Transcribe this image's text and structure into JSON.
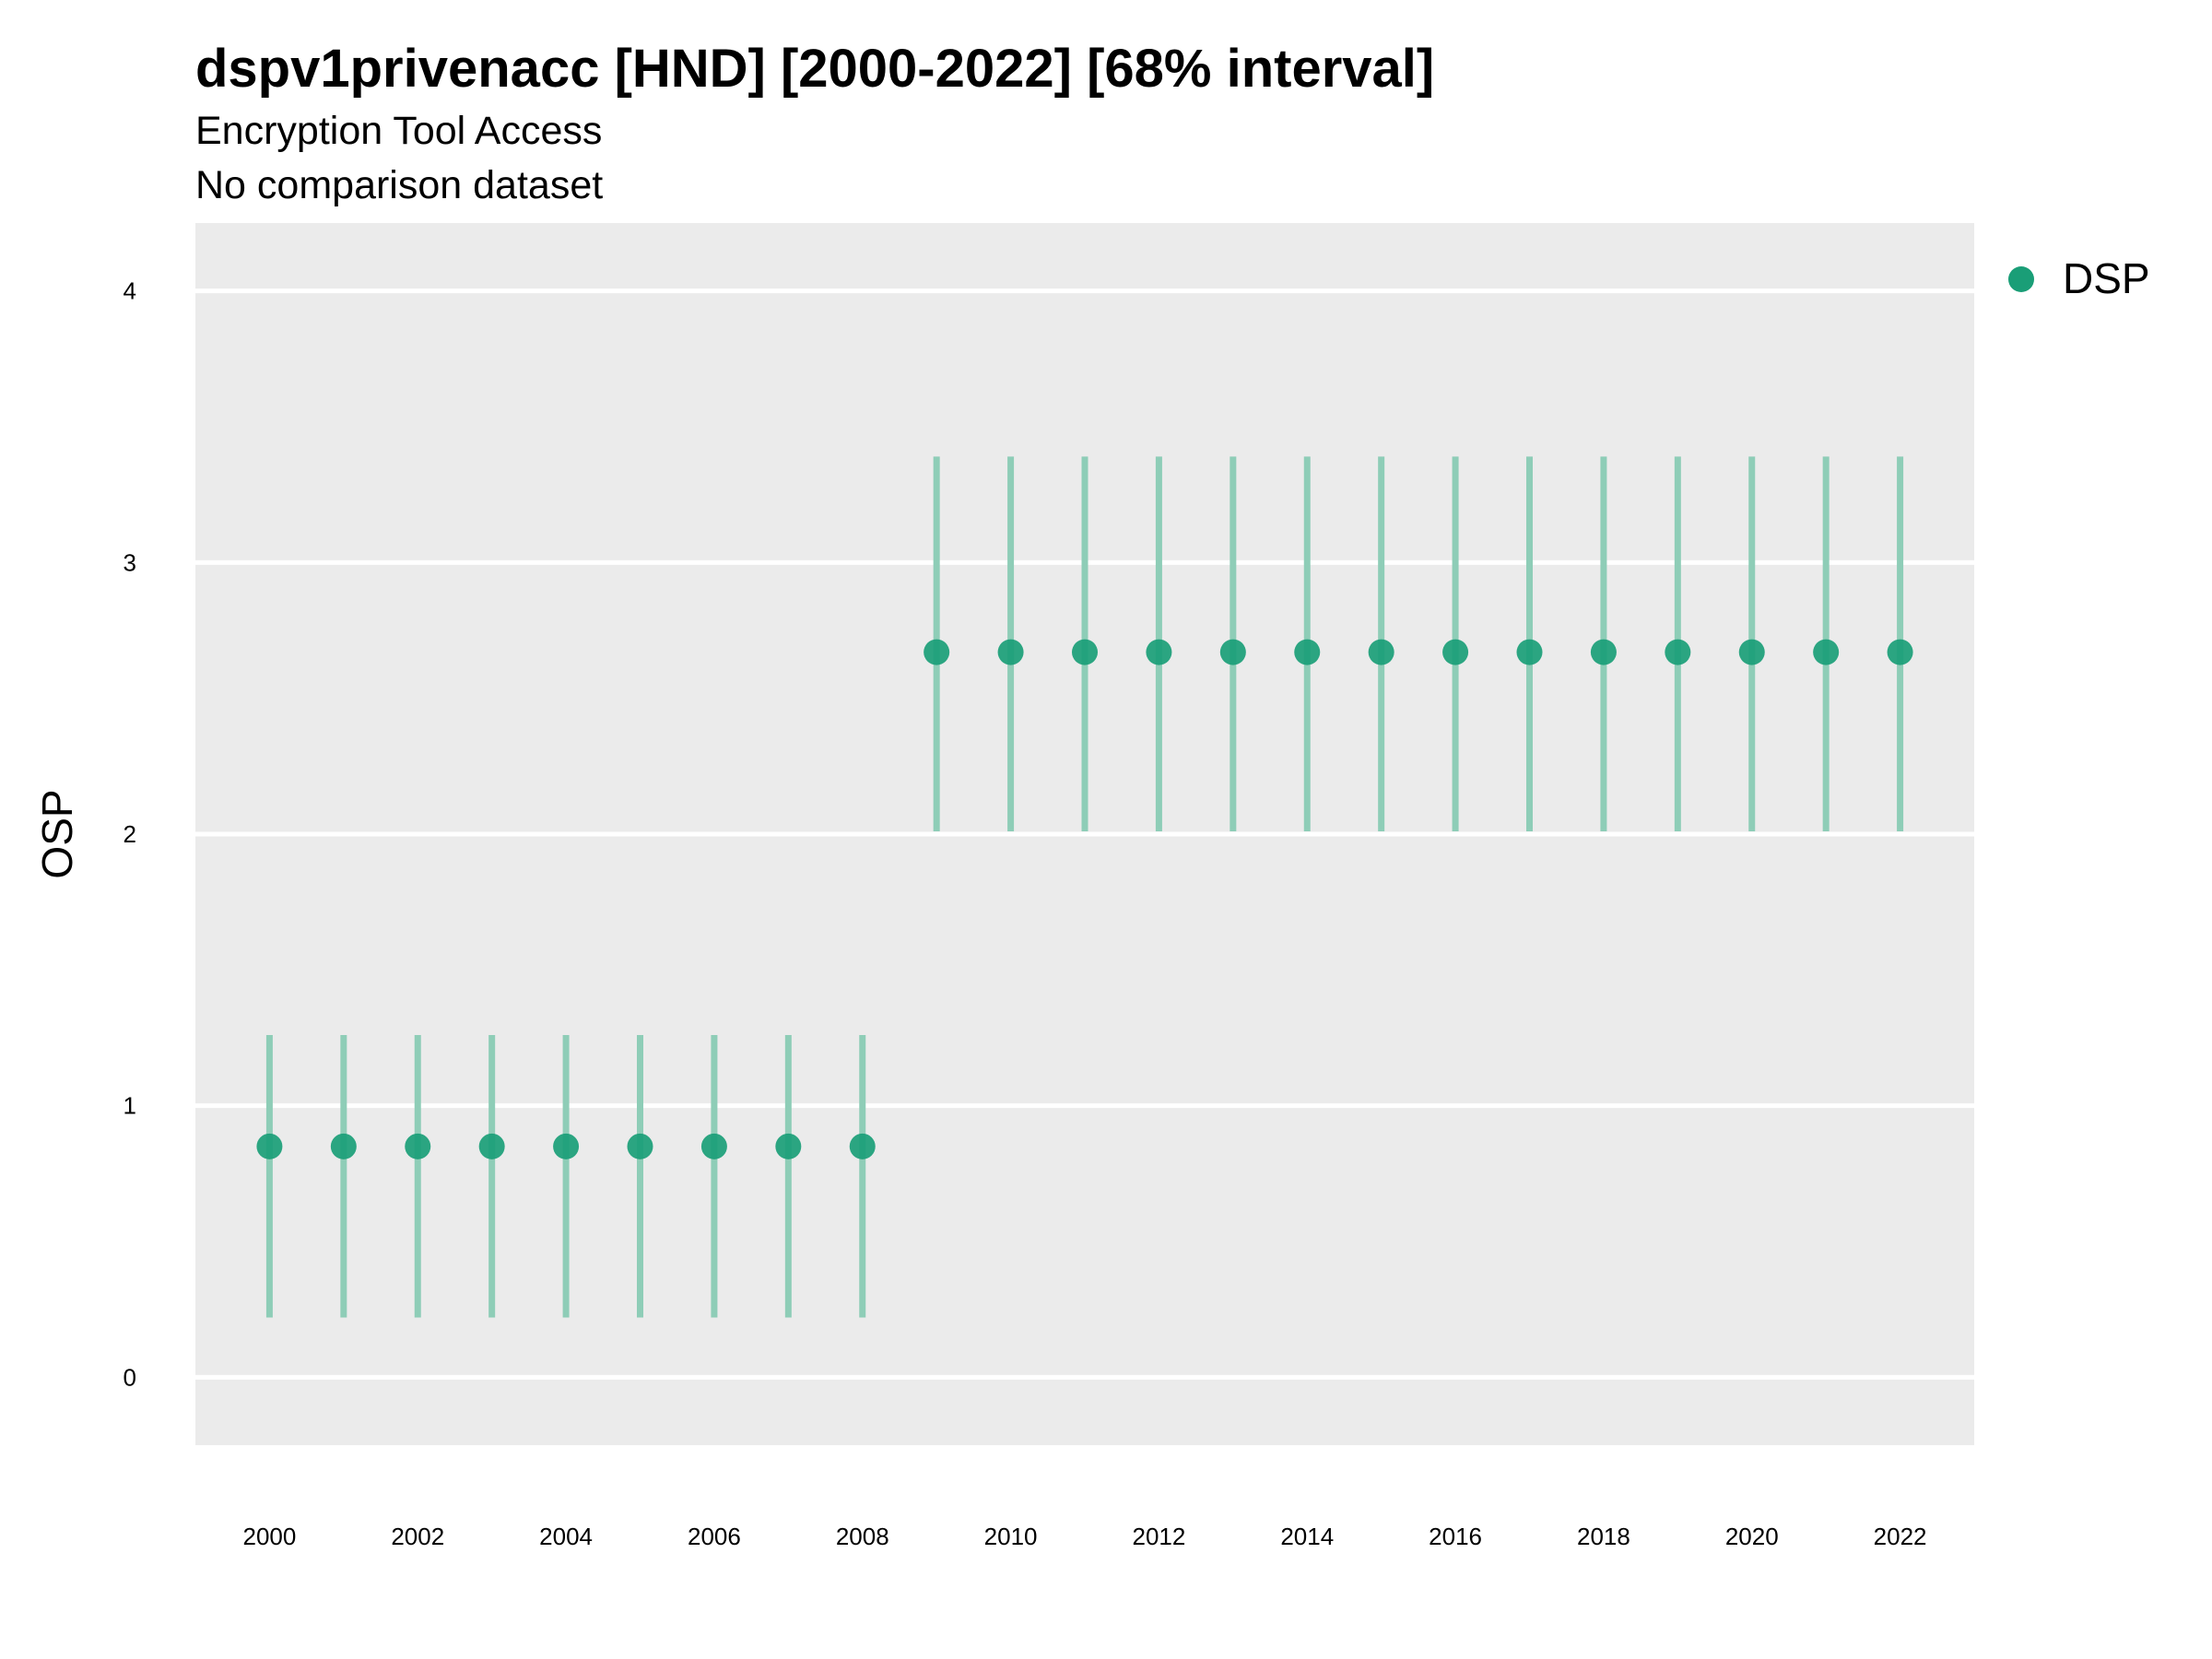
{
  "chart_data": {
    "type": "scatter",
    "title": "dspv1privenacc [HND] [2000-2022] [68% interval]",
    "subtitle": "Encryption Tool Access",
    "caption": "No comparison dataset",
    "xlabel": "",
    "ylabel": "OSP",
    "xlim": [
      1999,
      2023
    ],
    "ylim": [
      -0.25,
      4.25
    ],
    "x_ticks": [
      2000,
      2002,
      2004,
      2006,
      2008,
      2010,
      2012,
      2014,
      2016,
      2018,
      2020,
      2022
    ],
    "y_ticks": [
      0,
      1,
      2,
      3,
      4
    ],
    "grid": true,
    "legend_position": "right",
    "series": [
      {
        "name": "DSP",
        "color": "#1a9e77",
        "interval_color": "#8ecdb7",
        "x": [
          2000,
          2001,
          2002,
          2003,
          2004,
          2005,
          2006,
          2007,
          2008,
          2009,
          2010,
          2011,
          2012,
          2013,
          2014,
          2015,
          2016,
          2017,
          2018,
          2019,
          2020,
          2021,
          2022
        ],
        "y": [
          0.85,
          0.85,
          0.85,
          0.85,
          0.85,
          0.85,
          0.85,
          0.85,
          0.85,
          2.67,
          2.67,
          2.67,
          2.67,
          2.67,
          2.67,
          2.67,
          2.67,
          2.67,
          2.67,
          2.67,
          2.67,
          2.67,
          2.67
        ],
        "lower": [
          0.22,
          0.22,
          0.22,
          0.22,
          0.22,
          0.22,
          0.22,
          0.22,
          0.22,
          2.01,
          2.01,
          2.01,
          2.01,
          2.01,
          2.01,
          2.01,
          2.01,
          2.01,
          2.01,
          2.01,
          2.01,
          2.01,
          2.01
        ],
        "upper": [
          1.26,
          1.26,
          1.26,
          1.26,
          1.26,
          1.26,
          1.26,
          1.26,
          1.26,
          3.39,
          3.39,
          3.39,
          3.39,
          3.39,
          3.39,
          3.39,
          3.39,
          3.39,
          3.39,
          3.39,
          3.39,
          3.39,
          3.39
        ]
      }
    ]
  }
}
